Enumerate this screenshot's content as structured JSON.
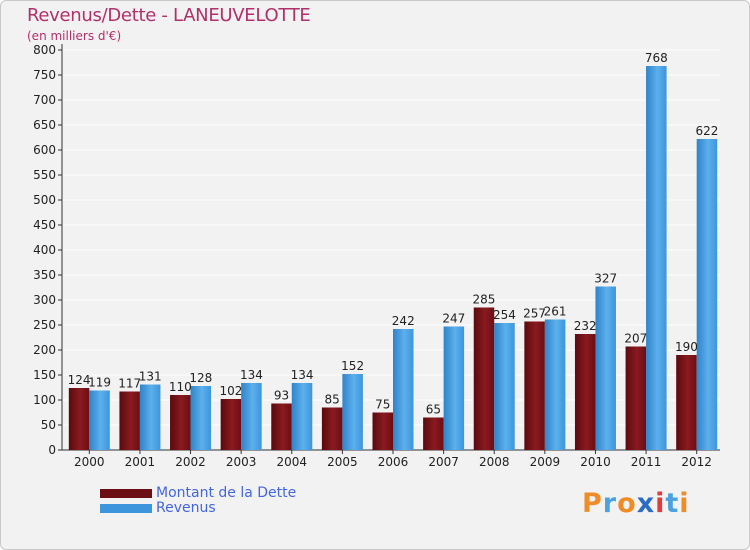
{
  "header": {
    "title": "Revenus/Dette - LANEUVELOTTE",
    "subtitle": "(en milliers d'€)"
  },
  "colors": {
    "dette": "#6b0f14",
    "revenus": "#3d95dc",
    "axis": "#333333",
    "grid": "#ffffff",
    "title": "#b0306a"
  },
  "chart_data": {
    "type": "bar",
    "categories": [
      "2000",
      "2001",
      "2002",
      "2003",
      "2004",
      "2005",
      "2006",
      "2007",
      "2008",
      "2009",
      "2010",
      "2011",
      "2012"
    ],
    "series": [
      {
        "name": "Montant de la Dette",
        "values": [
          124,
          117,
          110,
          102,
          93,
          85,
          75,
          65,
          285,
          257,
          232,
          207,
          190
        ]
      },
      {
        "name": "Revenus",
        "values": [
          119,
          131,
          128,
          134,
          134,
          152,
          242,
          247,
          254,
          261,
          327,
          768,
          622
        ]
      }
    ],
    "ylim": [
      0,
      800
    ],
    "yticks": [
      0,
      50,
      100,
      150,
      200,
      250,
      300,
      350,
      400,
      450,
      500,
      550,
      600,
      650,
      700,
      750,
      800
    ],
    "grid": true,
    "legend": "bottom-left"
  },
  "legend": {
    "items": [
      {
        "label": "Montant de la Dette",
        "icon": "dark-red-bar-swatch"
      },
      {
        "label": "Revenus",
        "icon": "blue-bar-swatch"
      }
    ]
  },
  "logo": {
    "text": "Proxiti",
    "letter_colors": [
      "#f08c28",
      "#4aa3df",
      "#f08c28",
      "#2b6cc4",
      "#e23b3b",
      "#4aa3df",
      "#f08c28"
    ]
  }
}
